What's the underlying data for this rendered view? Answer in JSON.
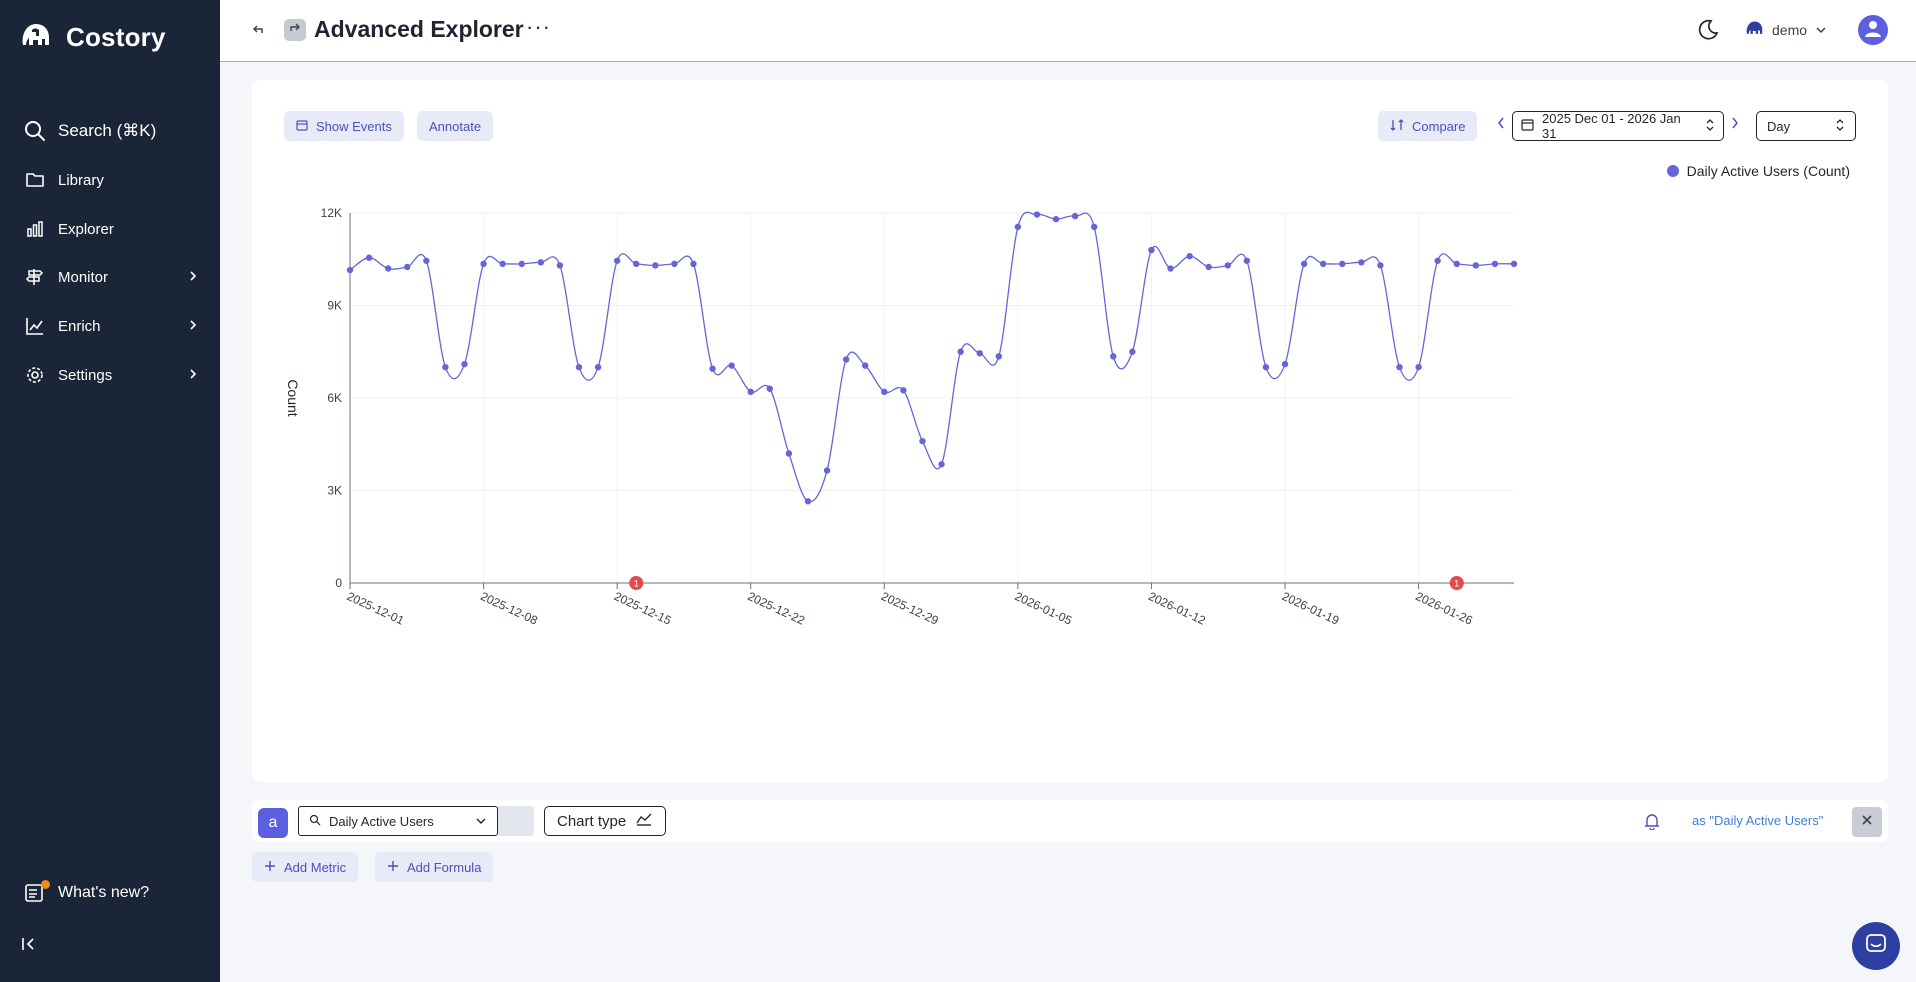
{
  "sidebar": {
    "brand": "Costory",
    "search_label": "Search (⌘K)",
    "items": [
      {
        "label": "Library",
        "icon": "folder-icon",
        "has_submenu": false
      },
      {
        "label": "Explorer",
        "icon": "bar-chart-icon",
        "has_submenu": false
      },
      {
        "label": "Monitor",
        "icon": "signpost-icon",
        "has_submenu": true
      },
      {
        "label": "Enrich",
        "icon": "line-chart-icon",
        "has_submenu": true
      },
      {
        "label": "Settings",
        "icon": "gear-icon",
        "has_submenu": true
      }
    ],
    "whats_new": "What's new?"
  },
  "header": {
    "title": "Advanced Explorer",
    "more": "···",
    "org": "demo"
  },
  "toolbar": {
    "show_events": "Show Events",
    "annotate": "Annotate",
    "compare": "Compare",
    "date_range": "2025 Dec 01 - 2026 Jan 31",
    "granularity": "Day"
  },
  "chart_data": {
    "type": "line",
    "ylabel": "Count",
    "ylim": [
      0,
      12000
    ],
    "yticks": [
      {
        "value": 0,
        "label": "0"
      },
      {
        "value": 3000,
        "label": "3K"
      },
      {
        "value": 6000,
        "label": "6K"
      },
      {
        "value": 9000,
        "label": "9K"
      },
      {
        "value": 12000,
        "label": "12K"
      }
    ],
    "xtick_labels": [
      "2025-12-01",
      "2025-12-08",
      "2025-12-15",
      "2025-12-22",
      "2025-12-29",
      "2026-01-05",
      "2026-01-12",
      "2026-01-19",
      "2026-01-26"
    ],
    "series": [
      {
        "name": "Daily Active Users (Count)",
        "color": "#6466d8",
        "x": [
          "2025-12-01",
          "2025-12-02",
          "2025-12-03",
          "2025-12-04",
          "2025-12-05",
          "2025-12-06",
          "2025-12-07",
          "2025-12-08",
          "2025-12-09",
          "2025-12-10",
          "2025-12-11",
          "2025-12-12",
          "2025-12-13",
          "2025-12-14",
          "2025-12-15",
          "2025-12-16",
          "2025-12-17",
          "2025-12-18",
          "2025-12-19",
          "2025-12-20",
          "2025-12-21",
          "2025-12-22",
          "2025-12-23",
          "2025-12-24",
          "2025-12-25",
          "2025-12-26",
          "2025-12-27",
          "2025-12-28",
          "2025-12-29",
          "2025-12-30",
          "2025-12-31",
          "2026-01-01",
          "2026-01-02",
          "2026-01-03",
          "2026-01-04",
          "2026-01-05",
          "2026-01-06",
          "2026-01-07",
          "2026-01-08",
          "2026-01-09",
          "2026-01-10",
          "2026-01-11",
          "2026-01-12",
          "2026-01-13",
          "2026-01-14",
          "2026-01-15",
          "2026-01-16",
          "2026-01-17",
          "2026-01-18",
          "2026-01-19",
          "2026-01-20",
          "2026-01-21",
          "2026-01-22",
          "2026-01-23",
          "2026-01-24",
          "2026-01-25",
          "2026-01-26",
          "2026-01-27",
          "2026-01-28",
          "2026-01-29",
          "2026-01-30",
          "2026-01-31"
        ],
        "values": [
          10150,
          10550,
          10200,
          10250,
          10450,
          7000,
          7100,
          10350,
          10350,
          10350,
          10400,
          10300,
          7000,
          7000,
          10450,
          10350,
          10300,
          10350,
          10350,
          6950,
          7050,
          6200,
          6300,
          4200,
          2650,
          3650,
          7250,
          7050,
          6200,
          6250,
          4600,
          3850,
          7500,
          7450,
          7350,
          11550,
          11950,
          11800,
          11900,
          11550,
          7350,
          7500,
          10800,
          10200,
          10600,
          10250,
          10300,
          10450,
          7000,
          7100,
          10350,
          10350,
          10350,
          10400,
          10300,
          7000,
          7000,
          10450,
          10350,
          10300,
          10350,
          10350
        ]
      }
    ],
    "event_markers": [
      {
        "x": "2025-12-16",
        "count": "1"
      },
      {
        "x": "2026-01-28",
        "count": "1"
      }
    ],
    "grid": true,
    "legend": "top-right"
  },
  "metric": {
    "letter": "a",
    "name": "Daily Active Users",
    "chart_type_label": "Chart type",
    "alias": "as \"Daily Active Users\""
  },
  "actions": {
    "add_metric": "Add Metric",
    "add_formula": "Add Formula"
  }
}
